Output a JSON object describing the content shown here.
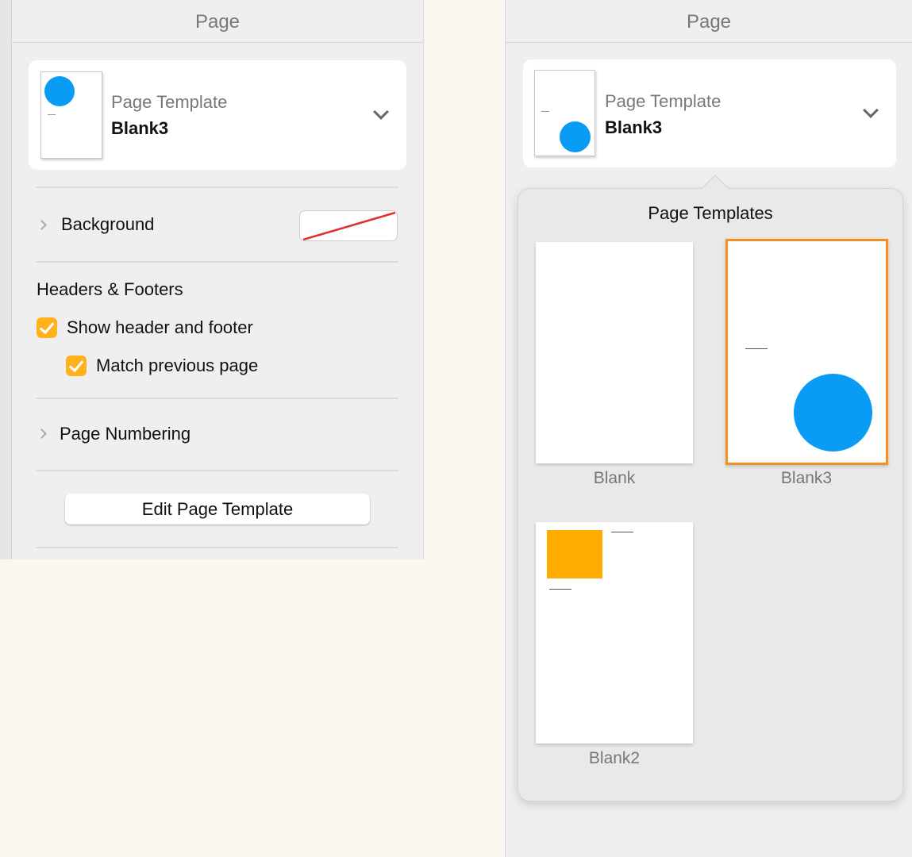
{
  "left": {
    "title": "Page",
    "template_label": "Page Template",
    "template_value": "Blank3",
    "background_label": "Background",
    "headers_footers_label": "Headers & Footers",
    "show_header_footer": {
      "label": "Show header and footer",
      "checked": true
    },
    "match_previous": {
      "label": "Match previous page",
      "checked": true
    },
    "page_numbering_label": "Page Numbering",
    "edit_button": "Edit Page Template"
  },
  "right": {
    "title": "Page",
    "template_label": "Page Template",
    "template_value": "Blank3",
    "popover": {
      "title": "Page Templates",
      "templates": [
        {
          "name": "Blank",
          "selected": false
        },
        {
          "name": "Blank3",
          "selected": true
        },
        {
          "name": "Blank2",
          "selected": false
        }
      ]
    }
  },
  "colors": {
    "accent": "#f5901e",
    "checkbox": "#ffb21c",
    "circle": "#0a9cf5",
    "square": "#ffad00",
    "no_fill_line": "#e03030"
  }
}
